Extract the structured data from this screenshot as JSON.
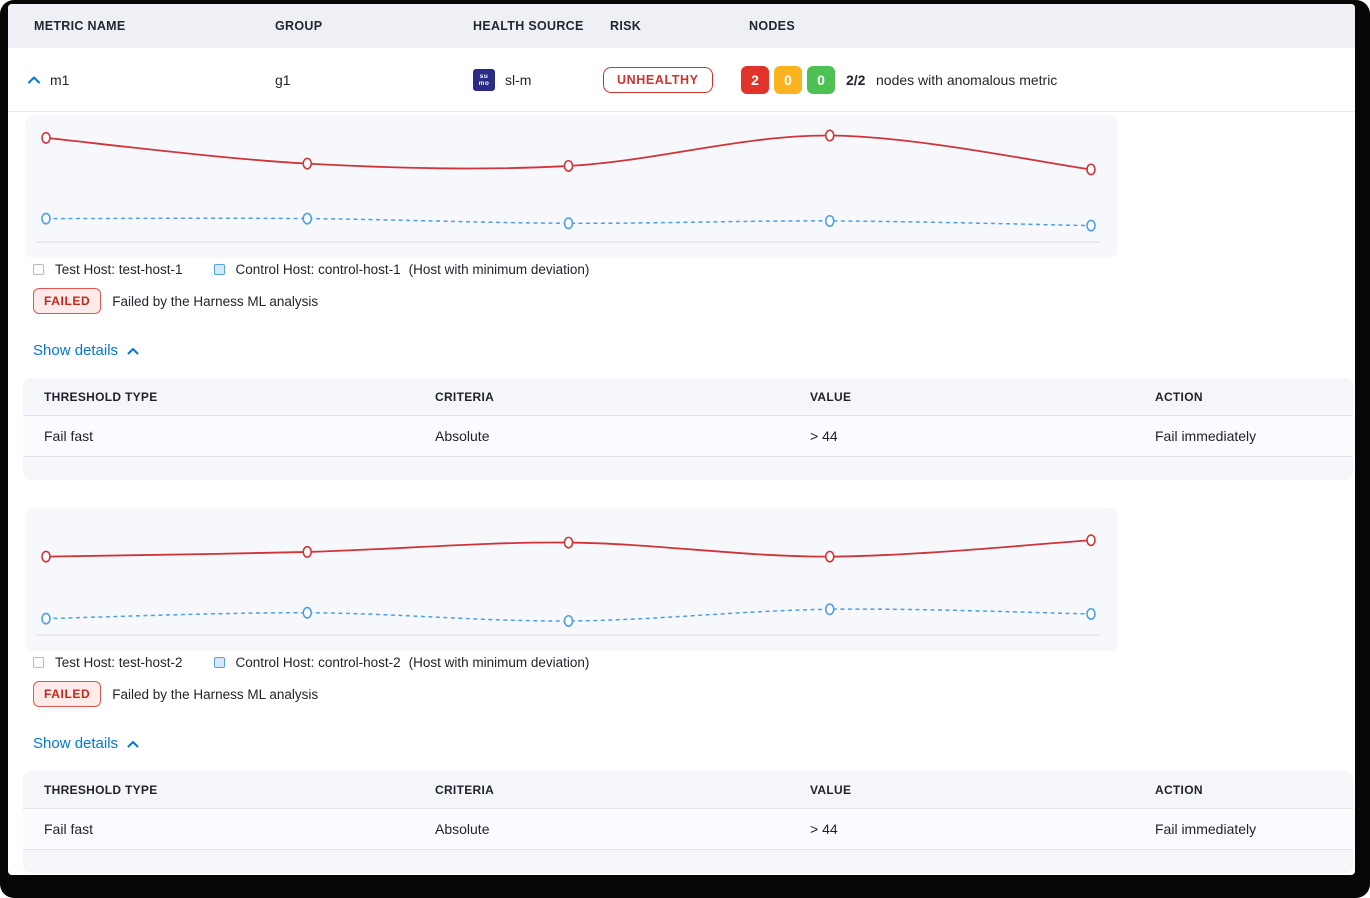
{
  "header": {
    "columns": [
      "METRIC NAME",
      "GROUP",
      "HEALTH SOURCE",
      "RISK",
      "NODES"
    ]
  },
  "metric_row": {
    "metric_name": "m1",
    "group": "g1",
    "health_source": {
      "name": "sl-m",
      "icon_top": "su",
      "icon_bottom": "mo"
    },
    "risk_label": "UNHEALTHY",
    "nodes": {
      "anomalous": "2",
      "warning": "0",
      "healthy": "0",
      "ratio": "2/2",
      "description": "nodes with anomalous metric"
    }
  },
  "sections": [
    {
      "legend": {
        "test_host": "Test Host: test-host-1",
        "control_host": "Control Host: control-host-1",
        "note": "(Host with minimum deviation)"
      },
      "status_badge": "FAILED",
      "status_message": "Failed by the Harness ML analysis",
      "show_details_label": "Show details",
      "details_table": {
        "columns": [
          "THRESHOLD TYPE",
          "CRITERIA",
          "VALUE",
          "ACTION"
        ],
        "rows": [
          {
            "threshold_type": "Fail fast",
            "criteria": "Absolute",
            "value": "> 44",
            "action": "Fail immediately"
          }
        ]
      }
    },
    {
      "legend": {
        "test_host": "Test Host: test-host-2",
        "control_host": "Control Host: control-host-2",
        "note": "(Host with minimum deviation)"
      },
      "status_badge": "FAILED",
      "status_message": "Failed by the Harness ML analysis",
      "show_details_label": "Show details",
      "details_table": {
        "columns": [
          "THRESHOLD TYPE",
          "CRITERIA",
          "VALUE",
          "ACTION"
        ],
        "rows": [
          {
            "threshold_type": "Fail fast",
            "criteria": "Absolute",
            "value": "> 44",
            "action": "Fail immediately"
          }
        ]
      }
    }
  ],
  "chart_data": [
    {
      "type": "line",
      "title": "",
      "xlabel": "",
      "ylabel": "",
      "x": [
        1,
        2,
        3,
        4,
        5
      ],
      "ylim": [
        0,
        100
      ],
      "grid": false,
      "legend_position": "bottom",
      "series": [
        {
          "name": "Test Host: test-host-1",
          "color": "#cf3438",
          "style": "solid",
          "values": [
            89,
            67,
            65,
            91,
            62
          ]
        },
        {
          "name": "Control Host: control-host-1",
          "color": "#4c9fe8",
          "style": "dashed",
          "values": [
            20,
            20,
            16,
            18,
            14
          ]
        }
      ]
    },
    {
      "type": "line",
      "title": "",
      "xlabel": "",
      "ylabel": "",
      "x": [
        1,
        2,
        3,
        4,
        5
      ],
      "ylim": [
        0,
        100
      ],
      "grid": false,
      "legend_position": "bottom",
      "series": [
        {
          "name": "Test Host: test-host-2",
          "color": "#cf3438",
          "style": "solid",
          "values": [
            67,
            71,
            79,
            67,
            81
          ]
        },
        {
          "name": "Control Host: control-host-2",
          "color": "#4c9fe8",
          "style": "dashed",
          "values": [
            14,
            19,
            12,
            22,
            18
          ]
        }
      ]
    }
  ],
  "colors": {
    "accent_blue": "#0278d5",
    "risk_red": "#cf342c",
    "node_red": "#e0332a",
    "node_yellow": "#fcb41e",
    "node_green": "#4ec154",
    "test_line": "#cf3438",
    "control_line": "#4c9fe8",
    "baseline": "#d9dce5"
  }
}
